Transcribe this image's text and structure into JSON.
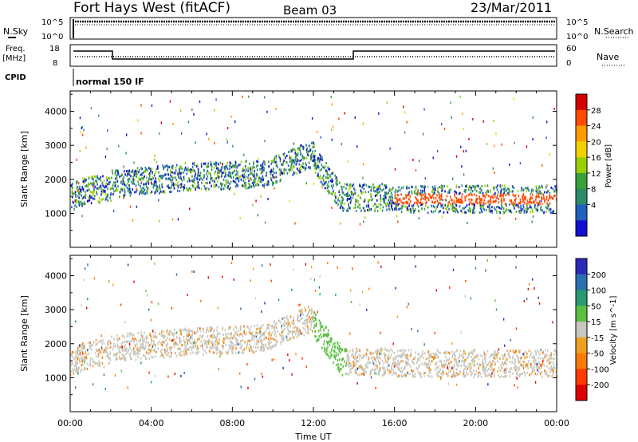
{
  "header": {
    "station": "Fort Hays West (fitACF)",
    "beam": "Beam 03",
    "date": "23/Mar/2011"
  },
  "top_panels": {
    "nsky_label": "N.Sky",
    "nsky_ticks": [
      "10^5",
      "10^0"
    ],
    "nsearch_ticks": [
      "10^5",
      "10^0"
    ],
    "nsearch_label": "N.Search",
    "freq_label": "Freq.",
    "freq_unit": "[MHz]",
    "freq_ticks": [
      "18",
      "8"
    ],
    "nave_ticks": [
      "60",
      "0"
    ],
    "nave_label": "Nave",
    "cpid_label": "CPID",
    "cpid_value": "normal 150 IF"
  },
  "chart_data": [
    {
      "type": "heatmap",
      "name": "power",
      "ylabel": "Slant Range [km]",
      "xlabel": "",
      "x_ticks": [
        "00:00",
        "04:00",
        "08:00",
        "12:00",
        "16:00",
        "20:00",
        "00:00"
      ],
      "xlim_hours": [
        0,
        24
      ],
      "ylim_km": [
        0,
        4600
      ],
      "y_ticks": [
        1000,
        2000,
        3000,
        4000
      ],
      "colorbar": {
        "label": "Power [dB]",
        "ticks": [
          "28",
          "24",
          "20",
          "16",
          "12",
          "8",
          "4"
        ],
        "colors": [
          "#d40000",
          "#ff4a00",
          "#ff9a00",
          "#f4d000",
          "#9ad000",
          "#3aa03a",
          "#2a8a6a",
          "#2060c0",
          "#1010d0"
        ]
      }
    },
    {
      "type": "heatmap",
      "name": "velocity",
      "ylabel": "Slant Range [km]",
      "xlabel": "Time UT",
      "x_ticks": [
        "00:00",
        "04:00",
        "08:00",
        "12:00",
        "16:00",
        "20:00",
        "00:00"
      ],
      "xlim_hours": [
        0,
        24
      ],
      "ylim_km": [
        0,
        4600
      ],
      "y_ticks": [
        1000,
        2000,
        3000,
        4000
      ],
      "colorbar": {
        "label": "Velocity [m s^-1]",
        "ticks": [
          "200",
          "100",
          "50",
          "15",
          "-15",
          "-50",
          "-100",
          "-200"
        ],
        "colors": [
          "#2a2ab8",
          "#2a70b0",
          "#2a9a70",
          "#5ac040",
          "#c8c8c0",
          "#f0a020",
          "#ff7a00",
          "#ff3a00",
          "#e00000"
        ]
      }
    }
  ]
}
